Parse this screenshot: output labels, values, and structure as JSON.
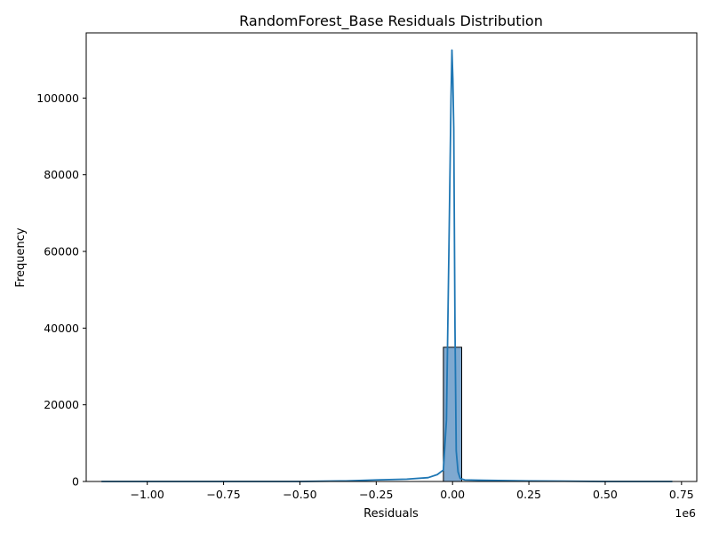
{
  "chart_data": {
    "type": "histogram",
    "title": "RandomForest_Base Residuals Distribution",
    "xlabel": "Residuals",
    "ylabel": "Frequency",
    "x_offset_label": "1e6",
    "x_multiplier": 1000000,
    "xlim": [
      -1.2,
      0.8
    ],
    "ylim": [
      0,
      117000
    ],
    "x_ticks": [
      -1.0,
      -0.75,
      -0.5,
      -0.25,
      0.0,
      0.25,
      0.5,
      0.75
    ],
    "x_tick_labels": [
      "−1.00",
      "−0.75",
      "−0.50",
      "−0.25",
      "0.00",
      "0.25",
      "0.50",
      "0.75"
    ],
    "y_ticks": [
      0,
      20000,
      40000,
      60000,
      80000,
      100000
    ],
    "y_tick_labels": [
      "0",
      "20000",
      "40000",
      "60000",
      "80000",
      "100000"
    ],
    "grid": false,
    "histogram": {
      "bins": [
        {
          "x0": -0.03,
          "x1": 0.03,
          "count": 35000
        }
      ],
      "bar_fill": "#7fa9d0",
      "bar_edge": "#000000"
    },
    "kde": {
      "color": "#1f77b4",
      "x": [
        -1.15,
        -1.0,
        -0.75,
        -0.5,
        -0.35,
        -0.25,
        -0.15,
        -0.08,
        -0.05,
        -0.03,
        -0.02,
        -0.012,
        -0.005,
        -0.002,
        0.001,
        0.004,
        0.008,
        0.012,
        0.018,
        0.025,
        0.04,
        0.1,
        0.25,
        0.5,
        0.72
      ],
      "y": [
        0,
        0,
        0,
        0,
        150,
        400,
        600,
        1000,
        1800,
        3000,
        16000,
        60000,
        100000,
        112500,
        105000,
        92000,
        40000,
        8000,
        2500,
        800,
        400,
        300,
        150,
        0,
        0
      ]
    }
  }
}
